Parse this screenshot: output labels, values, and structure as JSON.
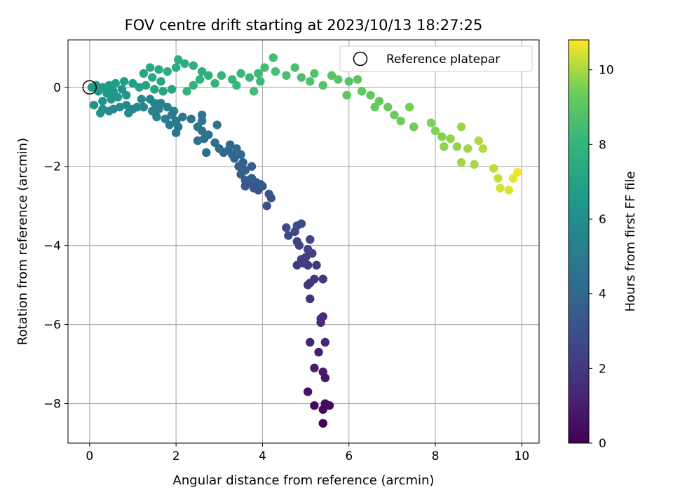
{
  "chart_data": {
    "type": "scatter",
    "title": "FOV centre drift starting at 2023/10/13 18:27:25",
    "xlabel": "Angular distance from reference (arcmin)",
    "ylabel": "Rotation from reference (arcmin)",
    "xlim": [
      -0.5,
      10.4
    ],
    "ylim": [
      -9.0,
      1.2
    ],
    "xticks": [
      "0",
      "2",
      "4",
      "6",
      "8",
      "10"
    ],
    "yticks": [
      "0",
      "−2",
      "−4",
      "−6",
      "−8"
    ],
    "grid": true,
    "legend": {
      "placement": "top-right",
      "entries": [
        "Reference platepar"
      ]
    },
    "reference_point": {
      "x": 0.0,
      "y": 0.0,
      "marker": "open-circle"
    },
    "colorbar": {
      "label": "Hours from first FF file",
      "colormap": "viridis",
      "range": [
        0,
        10.8
      ],
      "ticks": [
        "0",
        "2",
        "4",
        "6",
        "8",
        "10"
      ]
    },
    "series": [
      {
        "color_variable": "hours",
        "points": [
          {
            "x": 5.4,
            "y": -8.5,
            "h": 0.0
          },
          {
            "x": 5.2,
            "y": -8.05,
            "h": 0.2
          },
          {
            "x": 5.4,
            "y": -8.15,
            "h": 0.3
          },
          {
            "x": 5.55,
            "y": -8.05,
            "h": 0.4
          },
          {
            "x": 5.45,
            "y": -8.0,
            "h": 0.5
          },
          {
            "x": 5.05,
            "y": -7.7,
            "h": 0.6
          },
          {
            "x": 5.45,
            "y": -7.35,
            "h": 0.8
          },
          {
            "x": 5.4,
            "y": -7.2,
            "h": 0.9
          },
          {
            "x": 5.2,
            "y": -7.1,
            "h": 1.0
          },
          {
            "x": 5.3,
            "y": -6.7,
            "h": 1.1
          },
          {
            "x": 5.1,
            "y": -6.45,
            "h": 1.2
          },
          {
            "x": 5.45,
            "y": -6.45,
            "h": 1.25
          },
          {
            "x": 5.35,
            "y": -5.95,
            "h": 1.4
          },
          {
            "x": 5.4,
            "y": -5.8,
            "h": 1.5
          },
          {
            "x": 5.35,
            "y": -5.85,
            "h": 1.55
          },
          {
            "x": 5.1,
            "y": -5.35,
            "h": 1.7
          },
          {
            "x": 5.05,
            "y": -5.0,
            "h": 1.8
          },
          {
            "x": 5.1,
            "y": -4.95,
            "h": 1.85
          },
          {
            "x": 5.2,
            "y": -4.85,
            "h": 1.9
          },
          {
            "x": 5.4,
            "y": -4.85,
            "h": 2.0
          },
          {
            "x": 5.25,
            "y": -4.5,
            "h": 2.05
          },
          {
            "x": 4.8,
            "y": -4.5,
            "h": 2.1
          },
          {
            "x": 4.95,
            "y": -4.45,
            "h": 2.15
          },
          {
            "x": 5.05,
            "y": -4.5,
            "h": 2.2
          },
          {
            "x": 4.9,
            "y": -4.35,
            "h": 2.25
          },
          {
            "x": 5.0,
            "y": -4.3,
            "h": 2.3
          },
          {
            "x": 5.15,
            "y": -4.2,
            "h": 2.35
          },
          {
            "x": 5.05,
            "y": -4.1,
            "h": 2.4
          },
          {
            "x": 4.85,
            "y": -4.0,
            "h": 2.45
          },
          {
            "x": 4.8,
            "y": -3.9,
            "h": 2.5
          },
          {
            "x": 5.1,
            "y": -3.85,
            "h": 2.55
          },
          {
            "x": 4.6,
            "y": -3.75,
            "h": 2.6
          },
          {
            "x": 4.75,
            "y": -3.65,
            "h": 2.65
          },
          {
            "x": 4.55,
            "y": -3.55,
            "h": 2.7
          },
          {
            "x": 4.8,
            "y": -3.5,
            "h": 2.75
          },
          {
            "x": 4.9,
            "y": -3.45,
            "h": 2.8
          },
          {
            "x": 4.1,
            "y": -3.0,
            "h": 3.0
          },
          {
            "x": 4.2,
            "y": -2.8,
            "h": 3.1
          },
          {
            "x": 4.15,
            "y": -2.7,
            "h": 3.15
          },
          {
            "x": 3.9,
            "y": -2.6,
            "h": 3.2
          },
          {
            "x": 4.0,
            "y": -2.5,
            "h": 3.25
          },
          {
            "x": 3.8,
            "y": -2.55,
            "h": 3.3
          },
          {
            "x": 3.6,
            "y": -2.5,
            "h": 3.35
          },
          {
            "x": 3.7,
            "y": -2.4,
            "h": 3.4
          },
          {
            "x": 3.85,
            "y": -2.4,
            "h": 3.45
          },
          {
            "x": 3.95,
            "y": -2.45,
            "h": 3.5
          },
          {
            "x": 3.6,
            "y": -2.35,
            "h": 3.55
          },
          {
            "x": 3.75,
            "y": -2.3,
            "h": 3.6
          },
          {
            "x": 3.5,
            "y": -2.2,
            "h": 3.65
          },
          {
            "x": 3.6,
            "y": -2.1,
            "h": 3.7
          },
          {
            "x": 3.75,
            "y": -2.0,
            "h": 3.75
          },
          {
            "x": 3.45,
            "y": -2.0,
            "h": 3.8
          },
          {
            "x": 3.55,
            "y": -1.9,
            "h": 3.85
          },
          {
            "x": 3.35,
            "y": -1.8,
            "h": 3.9
          },
          {
            "x": 3.5,
            "y": -1.7,
            "h": 3.95
          },
          {
            "x": 3.3,
            "y": -1.7,
            "h": 4.0
          },
          {
            "x": 3.2,
            "y": -1.6,
            "h": 4.05
          },
          {
            "x": 3.1,
            "y": -1.65,
            "h": 4.1
          },
          {
            "x": 3.4,
            "y": -1.55,
            "h": 4.15
          },
          {
            "x": 3.25,
            "y": -1.45,
            "h": 4.2
          },
          {
            "x": 3.0,
            "y": -1.55,
            "h": 4.25
          },
          {
            "x": 2.7,
            "y": -1.65,
            "h": 4.3
          },
          {
            "x": 2.9,
            "y": -1.4,
            "h": 4.35
          },
          {
            "x": 2.65,
            "y": -1.3,
            "h": 4.4
          },
          {
            "x": 2.5,
            "y": -1.35,
            "h": 4.45
          },
          {
            "x": 2.75,
            "y": -1.2,
            "h": 4.5
          },
          {
            "x": 2.6,
            "y": -1.1,
            "h": 4.55
          },
          {
            "x": 2.5,
            "y": -1.0,
            "h": 4.6
          },
          {
            "x": 2.95,
            "y": -0.95,
            "h": 4.65
          },
          {
            "x": 2.6,
            "y": -0.85,
            "h": 4.7
          },
          {
            "x": 2.6,
            "y": -0.7,
            "h": 4.75
          },
          {
            "x": 2.35,
            "y": -0.8,
            "h": 4.8
          },
          {
            "x": 2.15,
            "y": -0.75,
            "h": 4.85
          },
          {
            "x": 2.0,
            "y": -1.15,
            "h": 4.9
          },
          {
            "x": 2.05,
            "y": -1.0,
            "h": 4.95
          },
          {
            "x": 2.0,
            "y": -0.85,
            "h": 5.0
          },
          {
            "x": 1.85,
            "y": -0.95,
            "h": 5.05
          },
          {
            "x": 1.9,
            "y": -0.7,
            "h": 5.1
          },
          {
            "x": 1.75,
            "y": -0.8,
            "h": 5.15
          },
          {
            "x": 1.95,
            "y": -0.6,
            "h": 5.2
          },
          {
            "x": 1.8,
            "y": -0.5,
            "h": 5.25
          },
          {
            "x": 1.6,
            "y": -0.55,
            "h": 5.3
          },
          {
            "x": 1.65,
            "y": -0.4,
            "h": 5.35
          },
          {
            "x": 1.55,
            "y": -0.75,
            "h": 5.4
          },
          {
            "x": 1.45,
            "y": -0.6,
            "h": 5.45
          },
          {
            "x": 1.5,
            "y": -0.4,
            "h": 5.5
          },
          {
            "x": 1.4,
            "y": -0.3,
            "h": 5.55
          },
          {
            "x": 1.25,
            "y": -0.5,
            "h": 5.6
          },
          {
            "x": 1.1,
            "y": -0.5,
            "h": 5.65
          },
          {
            "x": 1.2,
            "y": -0.3,
            "h": 5.7
          },
          {
            "x": 1.0,
            "y": -0.55,
            "h": 5.75
          },
          {
            "x": 0.9,
            "y": -0.65,
            "h": 5.8
          },
          {
            "x": 0.85,
            "y": -0.45,
            "h": 5.85
          },
          {
            "x": 0.7,
            "y": -0.5,
            "h": 5.9
          },
          {
            "x": 0.55,
            "y": -0.55,
            "h": 5.95
          },
          {
            "x": 0.45,
            "y": -0.6,
            "h": 6.0
          },
          {
            "x": 0.3,
            "y": -0.55,
            "h": 6.05
          },
          {
            "x": 0.25,
            "y": -0.65,
            "h": 6.1
          },
          {
            "x": 0.1,
            "y": -0.45,
            "h": 6.15
          },
          {
            "x": 0.3,
            "y": -0.35,
            "h": 6.2
          },
          {
            "x": 0.5,
            "y": -0.3,
            "h": 6.25
          },
          {
            "x": 0.65,
            "y": -0.25,
            "h": 6.3
          },
          {
            "x": 0.85,
            "y": -0.2,
            "h": 6.35
          },
          {
            "x": 0.75,
            "y": -0.05,
            "h": 6.4
          },
          {
            "x": 0.55,
            "y": -0.1,
            "h": 6.45
          },
          {
            "x": 0.4,
            "y": -0.15,
            "h": 6.5
          },
          {
            "x": 0.2,
            "y": -0.1,
            "h": 6.55
          },
          {
            "x": 0.05,
            "y": 0.0,
            "h": 6.6
          },
          {
            "x": 0.15,
            "y": 0.05,
            "h": 6.65
          },
          {
            "x": 0.3,
            "y": 0.0,
            "h": 6.7
          },
          {
            "x": 0.45,
            "y": 0.05,
            "h": 6.75
          },
          {
            "x": 0.6,
            "y": 0.1,
            "h": 6.8
          },
          {
            "x": 0.8,
            "y": 0.15,
            "h": 6.85
          },
          {
            "x": 1.0,
            "y": 0.1,
            "h": 6.9
          },
          {
            "x": 1.15,
            "y": 0.0,
            "h": 6.95
          },
          {
            "x": 1.3,
            "y": 0.05,
            "h": 7.0
          },
          {
            "x": 1.5,
            "y": -0.05,
            "h": 7.05
          },
          {
            "x": 1.7,
            "y": -0.1,
            "h": 7.1
          },
          {
            "x": 1.9,
            "y": -0.05,
            "h": 7.15
          },
          {
            "x": 1.65,
            "y": 0.15,
            "h": 7.2
          },
          {
            "x": 1.45,
            "y": 0.25,
            "h": 7.25
          },
          {
            "x": 1.25,
            "y": 0.35,
            "h": 7.3
          },
          {
            "x": 1.4,
            "y": 0.5,
            "h": 7.35
          },
          {
            "x": 1.6,
            "y": 0.45,
            "h": 7.4
          },
          {
            "x": 1.8,
            "y": 0.4,
            "h": 7.45
          },
          {
            "x": 2.0,
            "y": 0.5,
            "h": 7.5
          },
          {
            "x": 2.2,
            "y": 0.6,
            "h": 7.55
          },
          {
            "x": 2.05,
            "y": 0.7,
            "h": 7.6
          },
          {
            "x": 2.4,
            "y": 0.55,
            "h": 7.65
          },
          {
            "x": 2.6,
            "y": 0.4,
            "h": 7.7
          },
          {
            "x": 2.75,
            "y": 0.3,
            "h": 7.75
          },
          {
            "x": 2.55,
            "y": 0.2,
            "h": 7.8
          },
          {
            "x": 2.4,
            "y": 0.05,
            "h": 7.85
          },
          {
            "x": 2.25,
            "y": -0.1,
            "h": 7.9
          },
          {
            "x": 2.9,
            "y": 0.1,
            "h": 7.95
          },
          {
            "x": 3.05,
            "y": 0.3,
            "h": 8.0
          },
          {
            "x": 3.3,
            "y": 0.2,
            "h": 8.05
          },
          {
            "x": 3.5,
            "y": 0.35,
            "h": 8.1
          },
          {
            "x": 3.4,
            "y": 0.05,
            "h": 8.15
          },
          {
            "x": 3.7,
            "y": 0.25,
            "h": 8.2
          },
          {
            "x": 3.9,
            "y": 0.35,
            "h": 8.25
          },
          {
            "x": 3.95,
            "y": 0.15,
            "h": 8.3
          },
          {
            "x": 3.8,
            "y": -0.1,
            "h": 8.35
          },
          {
            "x": 4.05,
            "y": 0.5,
            "h": 8.4
          },
          {
            "x": 4.25,
            "y": 0.75,
            "h": 8.45
          },
          {
            "x": 4.3,
            "y": 0.4,
            "h": 8.5
          },
          {
            "x": 4.55,
            "y": 0.3,
            "h": 8.55
          },
          {
            "x": 4.75,
            "y": 0.5,
            "h": 8.6
          },
          {
            "x": 4.9,
            "y": 0.25,
            "h": 8.65
          },
          {
            "x": 5.1,
            "y": 0.15,
            "h": 8.7
          },
          {
            "x": 5.2,
            "y": 0.35,
            "h": 8.75
          },
          {
            "x": 5.4,
            "y": 0.05,
            "h": 8.8
          },
          {
            "x": 5.6,
            "y": 0.3,
            "h": 8.85
          },
          {
            "x": 5.75,
            "y": 0.2,
            "h": 8.9
          },
          {
            "x": 6.0,
            "y": 0.15,
            "h": 8.95
          },
          {
            "x": 6.2,
            "y": 0.2,
            "h": 9.0
          },
          {
            "x": 5.95,
            "y": -0.2,
            "h": 9.05
          },
          {
            "x": 6.3,
            "y": -0.1,
            "h": 9.1
          },
          {
            "x": 6.5,
            "y": -0.2,
            "h": 9.15
          },
          {
            "x": 6.7,
            "y": -0.35,
            "h": 9.2
          },
          {
            "x": 6.6,
            "y": -0.5,
            "h": 9.25
          },
          {
            "x": 6.9,
            "y": -0.5,
            "h": 9.3
          },
          {
            "x": 7.05,
            "y": -0.7,
            "h": 9.35
          },
          {
            "x": 7.2,
            "y": -0.85,
            "h": 9.4
          },
          {
            "x": 7.5,
            "y": -1.0,
            "h": 9.45
          },
          {
            "x": 7.4,
            "y": -0.5,
            "h": 9.5
          },
          {
            "x": 7.9,
            "y": -0.9,
            "h": 9.55
          },
          {
            "x": 8.0,
            "y": -1.1,
            "h": 9.6
          },
          {
            "x": 8.15,
            "y": -1.25,
            "h": 9.65
          },
          {
            "x": 8.2,
            "y": -1.5,
            "h": 9.7
          },
          {
            "x": 8.35,
            "y": -1.3,
            "h": 9.75
          },
          {
            "x": 8.5,
            "y": -1.5,
            "h": 9.8
          },
          {
            "x": 8.6,
            "y": -1.0,
            "h": 9.85
          },
          {
            "x": 8.75,
            "y": -1.55,
            "h": 9.9
          },
          {
            "x": 8.6,
            "y": -1.9,
            "h": 9.95
          },
          {
            "x": 8.9,
            "y": -1.95,
            "h": 10.0
          },
          {
            "x": 9.0,
            "y": -1.35,
            "h": 10.05
          },
          {
            "x": 9.1,
            "y": -1.55,
            "h": 10.1
          },
          {
            "x": 9.35,
            "y": -2.05,
            "h": 10.2
          },
          {
            "x": 9.45,
            "y": -2.3,
            "h": 10.3
          },
          {
            "x": 9.5,
            "y": -2.55,
            "h": 10.4
          },
          {
            "x": 9.7,
            "y": -2.6,
            "h": 10.5
          },
          {
            "x": 9.8,
            "y": -2.3,
            "h": 10.6
          },
          {
            "x": 9.9,
            "y": -2.15,
            "h": 10.7
          }
        ]
      }
    ]
  }
}
